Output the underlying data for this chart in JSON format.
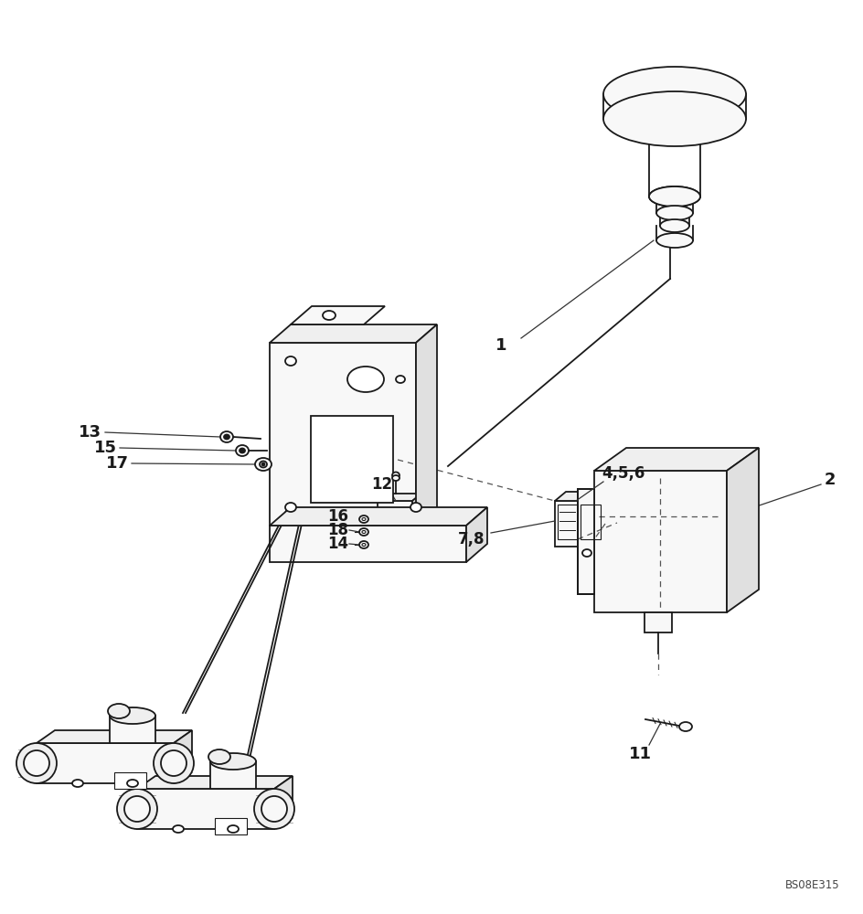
{
  "background_color": "#ffffff",
  "line_color": "#1a1a1a",
  "watermark": "BS08E315",
  "fig_w": 9.44,
  "fig_h": 10.0,
  "dpi": 100
}
